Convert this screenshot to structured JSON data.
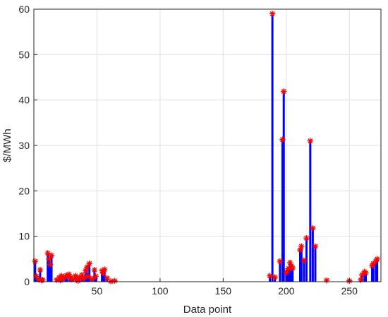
{
  "chart_data": {
    "type": "stem",
    "title": "",
    "xlabel": "Data point",
    "ylabel": "$/MWh",
    "xlim": [
      0,
      275
    ],
    "ylim": [
      0,
      60
    ],
    "xticks": [
      50,
      100,
      150,
      200,
      250
    ],
    "yticks": [
      0,
      10,
      20,
      30,
      40,
      50,
      60
    ],
    "grid": true,
    "stem_color": "#0000ff",
    "marker_color": "#ff0000",
    "marker": "asterisk",
    "points": [
      {
        "x": 1,
        "y": 4.5
      },
      {
        "x": 2,
        "y": 1.2
      },
      {
        "x": 4,
        "y": 0.5
      },
      {
        "x": 5,
        "y": 2.6
      },
      {
        "x": 6,
        "y": 0.3
      },
      {
        "x": 7,
        "y": 0.4
      },
      {
        "x": 11,
        "y": 6.3
      },
      {
        "x": 12,
        "y": 5.0
      },
      {
        "x": 13,
        "y": 3.8
      },
      {
        "x": 14,
        "y": 5.8
      },
      {
        "x": 18,
        "y": 0.4
      },
      {
        "x": 20,
        "y": 0.9
      },
      {
        "x": 21,
        "y": 0.3
      },
      {
        "x": 22,
        "y": 1.3
      },
      {
        "x": 23,
        "y": 0.7
      },
      {
        "x": 25,
        "y": 1.1
      },
      {
        "x": 26,
        "y": 1.4
      },
      {
        "x": 28,
        "y": 1.6
      },
      {
        "x": 29,
        "y": 0.9
      },
      {
        "x": 30,
        "y": 0.5
      },
      {
        "x": 31,
        "y": 0.7
      },
      {
        "x": 33,
        "y": 1.3
      },
      {
        "x": 34,
        "y": 0.8
      },
      {
        "x": 35,
        "y": 0.2
      },
      {
        "x": 36,
        "y": 0.9
      },
      {
        "x": 38,
        "y": 1.5
      },
      {
        "x": 39,
        "y": 0.6
      },
      {
        "x": 40,
        "y": 1.0
      },
      {
        "x": 41,
        "y": 2.4
      },
      {
        "x": 42,
        "y": 3.2
      },
      {
        "x": 43,
        "y": 1.2
      },
      {
        "x": 44,
        "y": 4.0
      },
      {
        "x": 46,
        "y": 0.6
      },
      {
        "x": 48,
        "y": 2.6
      },
      {
        "x": 49,
        "y": 1.2
      },
      {
        "x": 54,
        "y": 2.4
      },
      {
        "x": 55,
        "y": 1.9
      },
      {
        "x": 56,
        "y": 2.7
      },
      {
        "x": 58,
        "y": 0.8
      },
      {
        "x": 61,
        "y": 0.1
      },
      {
        "x": 64,
        "y": 0.2
      },
      {
        "x": 187,
        "y": 1.3
      },
      {
        "x": 189,
        "y": 59.0
      },
      {
        "x": 191,
        "y": 1.0
      },
      {
        "x": 195,
        "y": 4.5
      },
      {
        "x": 197,
        "y": 31.3
      },
      {
        "x": 198,
        "y": 41.9
      },
      {
        "x": 200,
        "y": 2.0
      },
      {
        "x": 201,
        "y": 2.5
      },
      {
        "x": 202,
        "y": 2.9
      },
      {
        "x": 203,
        "y": 4.2
      },
      {
        "x": 204,
        "y": 3.5
      },
      {
        "x": 205,
        "y": 3.0
      },
      {
        "x": 211,
        "y": 7.0
      },
      {
        "x": 212,
        "y": 7.8
      },
      {
        "x": 214,
        "y": 4.7
      },
      {
        "x": 216,
        "y": 9.6
      },
      {
        "x": 219,
        "y": 31.0
      },
      {
        "x": 221,
        "y": 11.8
      },
      {
        "x": 223,
        "y": 7.8
      },
      {
        "x": 232,
        "y": 0.3
      },
      {
        "x": 250,
        "y": 0.2
      },
      {
        "x": 259,
        "y": 0.4
      },
      {
        "x": 260,
        "y": 1.5
      },
      {
        "x": 262,
        "y": 2.2
      },
      {
        "x": 263,
        "y": 1.9
      },
      {
        "x": 268,
        "y": 3.5
      },
      {
        "x": 269,
        "y": 4.0
      },
      {
        "x": 271,
        "y": 4.5
      },
      {
        "x": 272,
        "y": 5.0
      }
    ]
  }
}
